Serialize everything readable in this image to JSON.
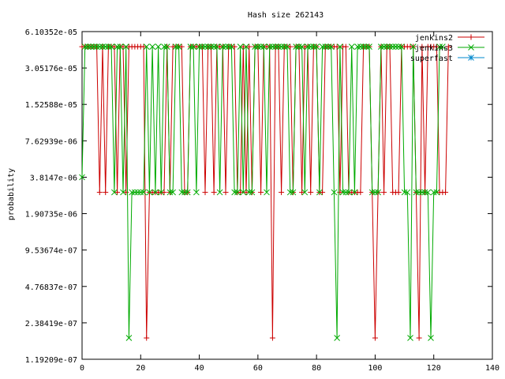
{
  "chart_data": {
    "type": "line",
    "title": "Hash size 262143",
    "xlabel": "",
    "ylabel": "probability",
    "scale": "log2",
    "xlim": [
      0,
      140
    ],
    "ylim": [
      1.19209e-07,
      6.10352e-05
    ],
    "x_ticks": [
      "0",
      "20",
      "40",
      "60",
      "80",
      "100",
      "120",
      "140"
    ],
    "x_tick_values": [
      0,
      20,
      40,
      60,
      80,
      100,
      120,
      140
    ],
    "y_ticks": [
      "1.19209e-07",
      "2.38419e-07",
      "4.76837e-07",
      "9.53674e-07",
      "1.90735e-06",
      "3.8147e-06",
      "7.62939e-06",
      "1.52588e-05",
      "3.05176e-05",
      "6.10352e-05"
    ],
    "y_tick_values": [
      1.19209e-07,
      2.38419e-07,
      4.76837e-07,
      9.53674e-07,
      1.90735e-06,
      3.8147e-06,
      7.62939e-06,
      1.52588e-05,
      3.05176e-05,
      6.10352e-05
    ],
    "levels": {
      "high": 4.57764e-05,
      "mid": 3.8147e-06,
      "base": 2.86102e-06,
      "low": 1.78814e-07
    },
    "legend_position": "top-right",
    "series": [
      {
        "name": "jenkins2",
        "color": "#cc0000",
        "marker": "plus",
        "x_start": 0,
        "codes": "HHHHHHBHBHHHBHHBHHHHHHLBBBBBBHBHHHHBBHHHHHBHHBHHHBHHHBBHBHBHHBHHHLHHBHHHBHHBHHBHHBBHHHHHBHHBBBBBHHHBLBHBHHBBBHHHHHBLHBHHHHBBBH"
      },
      {
        "name": "jenkins3",
        "color": "#00aa00",
        "marker": "cross",
        "x_start": 0,
        "codes": "MHHHHHHHHHHBHHBHLBBBBBHBHBHBHHBBHHBBBHHBHHHHHHHBHHHHBBHBHBBHHHHBHHHHHHHBBHHHBHHHHBHHHHBLHBBBHBHHHHHBBBHHHHHHHHBBLHBBBBBLBBHH"
      },
      {
        "name": "superfast",
        "color": "#0088cc",
        "marker": "star",
        "x_start": 0,
        "codes": ""
      }
    ]
  }
}
